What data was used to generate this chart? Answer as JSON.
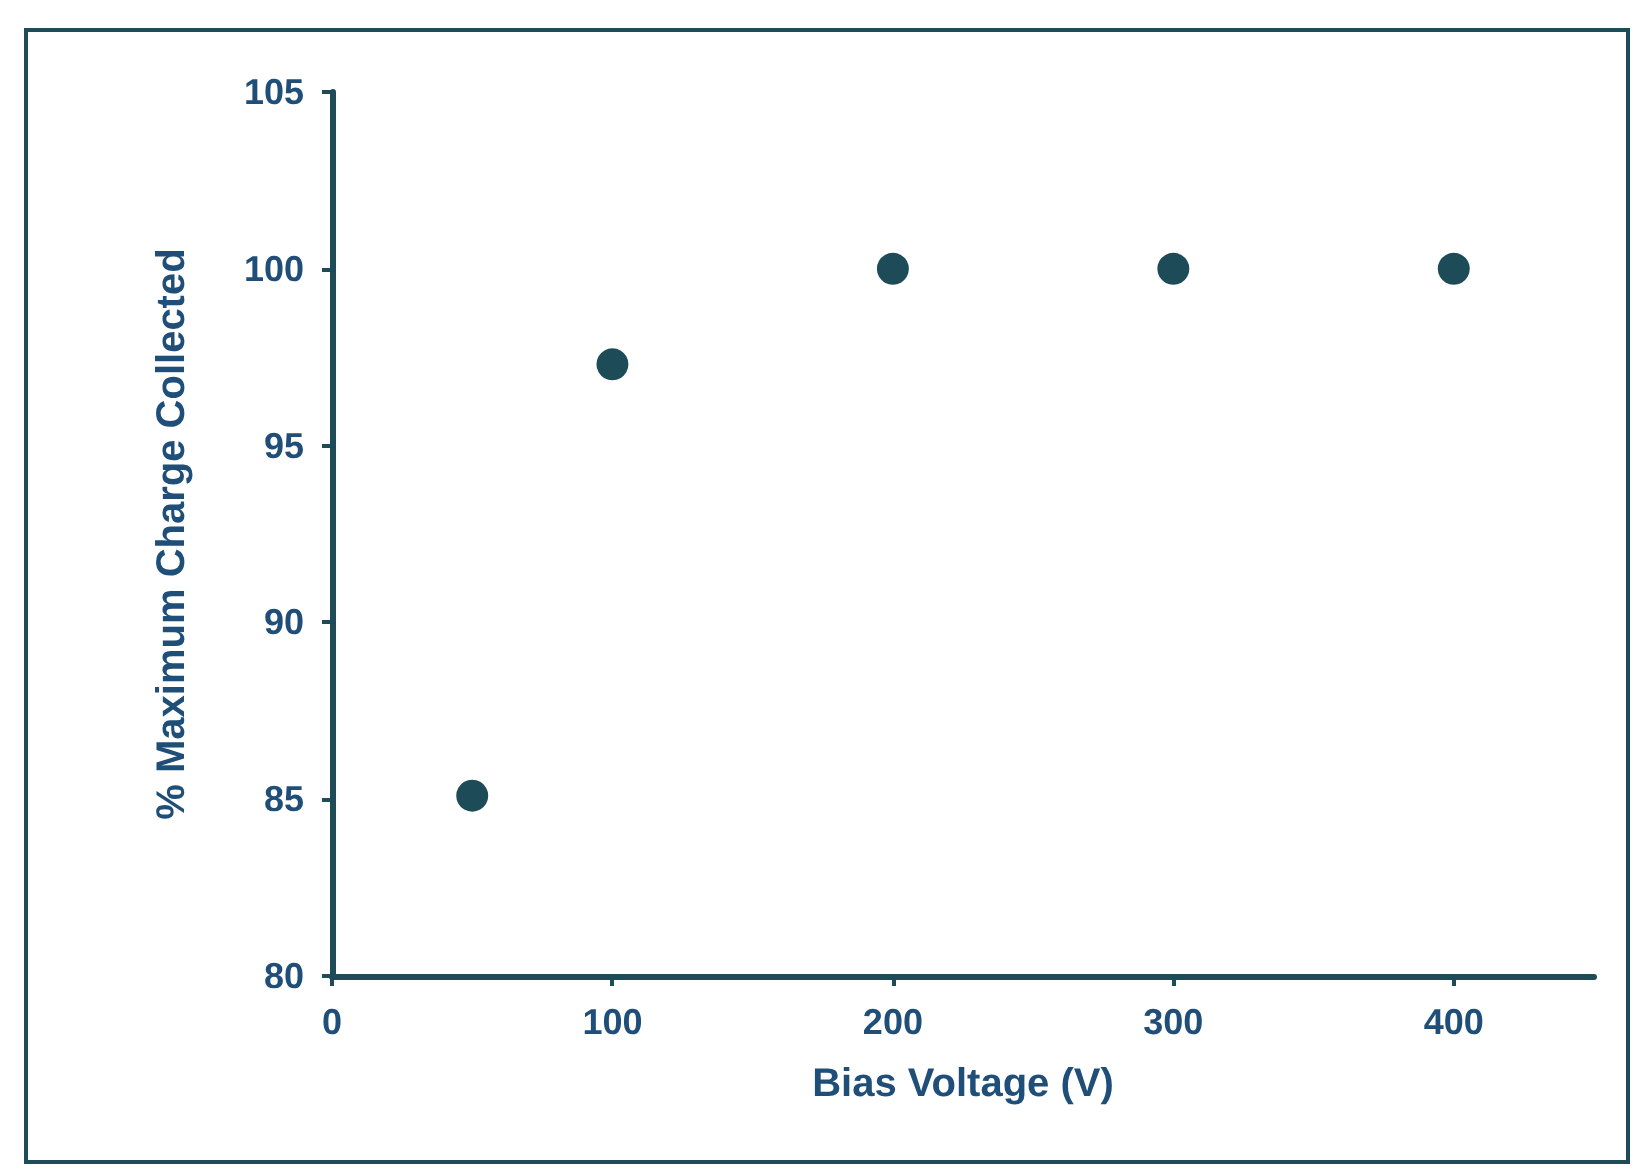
{
  "chart_data": {
    "type": "scatter",
    "xlabel": "Bias Voltage (V)",
    "ylabel": "% Maximum Charge Collected",
    "x": [
      50,
      100,
      200,
      300,
      400
    ],
    "series": [
      {
        "color": "#1d4b58",
        "values": [
          85.1,
          97.3,
          100,
          100,
          100
        ]
      }
    ],
    "xlim": [
      0,
      450
    ],
    "xticks": [
      0,
      100,
      200,
      300,
      400
    ],
    "ylim": [
      80,
      105
    ],
    "yticks": [
      80,
      85,
      90,
      95,
      100,
      105
    ],
    "marker": "circle",
    "grid": false
  }
}
